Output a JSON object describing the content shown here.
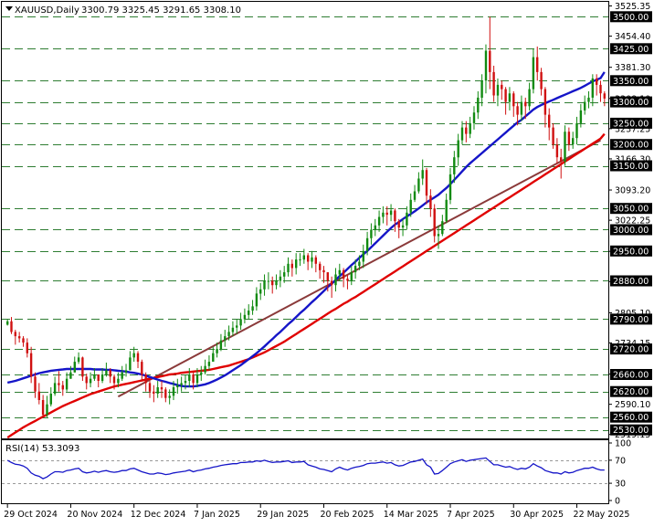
{
  "chart_data": {
    "type": "candlestick",
    "symbol_label": "XAUUSD,Daily",
    "ohlc_label": "3300.79 3325.45 3291.65 3308.10",
    "y_axis_ticks": [
      "3525.35",
      "3454.40",
      "3381.30",
      "3308.10",
      "3237.25",
      "3166.30",
      "3093.20",
      "3022.25",
      "2949.15",
      "2878.20",
      "2805.10",
      "2734.15",
      "2661.05",
      "2590.10",
      "2519.15"
    ],
    "ylim": [
      2510,
      3535
    ],
    "horizontal_levels": [
      3500,
      3425,
      3350,
      3300,
      3250,
      3200,
      3150,
      3050,
      3000,
      2950,
      2880,
      2790,
      2720,
      2660,
      2620,
      2560,
      2530
    ],
    "level_labels": [
      "3500.00",
      "3425.00",
      "3350.00",
      "3300.00",
      "3250.00",
      "3200.00",
      "3150.00",
      "3050.00",
      "3000.00",
      "2950.00",
      "2880.00",
      "2790.00",
      "2720.00",
      "2660.00",
      "2620.00",
      "2560.00",
      "2530.00"
    ],
    "x_labels": [
      "29 Oct 2024",
      "20 Nov 2024",
      "12 Dec 2024",
      "7 Jan 2025",
      "29 Jan 2025",
      "20 Feb 2025",
      "14 Mar 2025",
      "7 Apr 2025",
      "30 Apr 2025",
      "22 May 2025"
    ],
    "x_label_index": [
      0,
      16,
      32,
      48,
      64,
      80,
      96,
      112,
      128,
      144
    ],
    "closes": [
      2785,
      2760,
      2750,
      2745,
      2735,
      2710,
      2655,
      2620,
      2600,
      2565,
      2590,
      2615,
      2640,
      2635,
      2625,
      2650,
      2665,
      2690,
      2700,
      2655,
      2640,
      2650,
      2660,
      2645,
      2660,
      2670,
      2655,
      2640,
      2650,
      2665,
      2670,
      2700,
      2710,
      2690,
      2660,
      2640,
      2620,
      2615,
      2630,
      2625,
      2605,
      2610,
      2630,
      2635,
      2640,
      2645,
      2660,
      2640,
      2660,
      2665,
      2680,
      2690,
      2710,
      2720,
      2740,
      2750,
      2760,
      2770,
      2775,
      2790,
      2800,
      2810,
      2820,
      2850,
      2860,
      2880,
      2880,
      2870,
      2880,
      2890,
      2900,
      2920,
      2910,
      2930,
      2930,
      2940,
      2925,
      2935,
      2920,
      2905,
      2900,
      2880,
      2870,
      2895,
      2905,
      2885,
      2880,
      2900,
      2915,
      2925,
      2950,
      2980,
      3000,
      3010,
      3030,
      3040,
      3035,
      3045,
      3020,
      3005,
      3010,
      3040,
      3070,
      3090,
      3120,
      3140,
      3080,
      3050,
      2985,
      2990,
      3020,
      3070,
      3130,
      3170,
      3210,
      3240,
      3225,
      3250,
      3275,
      3310,
      3350,
      3420,
      3370,
      3315,
      3340,
      3330,
      3300,
      3320,
      3290,
      3270,
      3300,
      3290,
      3330,
      3405,
      3370,
      3330,
      3270,
      3240,
      3200,
      3170,
      3160,
      3230,
      3200,
      3215,
      3250,
      3280,
      3300,
      3310,
      3355,
      3340,
      3320,
      3308
    ],
    "highs": [
      2790,
      2795,
      2765,
      2760,
      2750,
      2745,
      2725,
      2665,
      2640,
      2612,
      2610,
      2630,
      2655,
      2668,
      2645,
      2665,
      2680,
      2702,
      2712,
      2702,
      2662,
      2665,
      2675,
      2660,
      2675,
      2688,
      2675,
      2660,
      2665,
      2680,
      2685,
      2715,
      2725,
      2715,
      2695,
      2665,
      2645,
      2635,
      2645,
      2645,
      2630,
      2625,
      2645,
      2650,
      2655,
      2660,
      2675,
      2665,
      2675,
      2680,
      2695,
      2705,
      2725,
      2735,
      2755,
      2765,
      2775,
      2785,
      2790,
      2805,
      2815,
      2825,
      2835,
      2865,
      2875,
      2895,
      2900,
      2890,
      2895,
      2905,
      2915,
      2935,
      2930,
      2945,
      2945,
      2955,
      2945,
      2950,
      2940,
      2925,
      2915,
      2900,
      2890,
      2910,
      2920,
      2910,
      2895,
      2915,
      2930,
      2940,
      2965,
      2995,
      3015,
      3025,
      3045,
      3055,
      3055,
      3060,
      3050,
      3025,
      3025,
      3055,
      3085,
      3105,
      3135,
      3165,
      3145,
      3095,
      3060,
      3010,
      3035,
      3085,
      3145,
      3185,
      3225,
      3255,
      3255,
      3265,
      3290,
      3325,
      3365,
      3435,
      3500,
      3385,
      3355,
      3350,
      3335,
      3335,
      3325,
      3300,
      3315,
      3310,
      3345,
      3425,
      3430,
      3380,
      3335,
      3285,
      3250,
      3215,
      3190,
      3245,
      3240,
      3230,
      3265,
      3295,
      3315,
      3325,
      3365,
      3365,
      3350,
      3325
    ],
    "lows": [
      2775,
      2755,
      2730,
      2735,
      2725,
      2700,
      2640,
      2605,
      2590,
      2560,
      2560,
      2585,
      2610,
      2620,
      2610,
      2620,
      2650,
      2670,
      2685,
      2645,
      2625,
      2630,
      2645,
      2630,
      2640,
      2655,
      2640,
      2625,
      2630,
      2645,
      2655,
      2670,
      2690,
      2675,
      2645,
      2620,
      2605,
      2595,
      2605,
      2605,
      2595,
      2590,
      2600,
      2615,
      2620,
      2625,
      2630,
      2625,
      2630,
      2645,
      2660,
      2670,
      2690,
      2700,
      2715,
      2725,
      2740,
      2750,
      2755,
      2765,
      2780,
      2790,
      2800,
      2810,
      2835,
      2845,
      2860,
      2850,
      2860,
      2865,
      2875,
      2890,
      2890,
      2895,
      2915,
      2920,
      2905,
      2910,
      2900,
      2885,
      2875,
      2855,
      2840,
      2855,
      2880,
      2865,
      2860,
      2870,
      2885,
      2905,
      2910,
      2940,
      2965,
      2985,
      2995,
      3015,
      3010,
      3020,
      2995,
      2980,
      2985,
      3000,
      3030,
      3065,
      3085,
      3105,
      3060,
      3030,
      2970,
      2955,
      2985,
      3015,
      3060,
      3110,
      3150,
      3200,
      3205,
      3215,
      3235,
      3260,
      3290,
      3320,
      3330,
      3300,
      3290,
      3305,
      3270,
      3280,
      3265,
      3245,
      3255,
      3260,
      3280,
      3320,
      3350,
      3315,
      3240,
      3210,
      3190,
      3155,
      3120,
      3150,
      3185,
      3190,
      3200,
      3240,
      3270,
      3285,
      3290,
      3315,
      3300,
      3290
    ],
    "ma_blue": [
      2641,
      2643,
      2645,
      2648,
      2651,
      2654,
      2657,
      2660,
      2663,
      2665,
      2667,
      2669,
      2670,
      2671,
      2672,
      2673,
      2673,
      2673,
      2673,
      2673,
      2673,
      2673,
      2672,
      2672,
      2672,
      2671,
      2671,
      2670,
      2669,
      2668,
      2667,
      2665,
      2664,
      2662,
      2660,
      2657,
      2654,
      2651,
      2648,
      2645,
      2643,
      2640,
      2638,
      2635,
      2633,
      2632,
      2632,
      2632,
      2633,
      2635,
      2637,
      2640,
      2644,
      2648,
      2653,
      2658,
      2664,
      2670,
      2676,
      2682,
      2689,
      2696,
      2703,
      2710,
      2718,
      2726,
      2735,
      2743,
      2752,
      2760,
      2769,
      2778,
      2786,
      2795,
      2804,
      2812,
      2821,
      2830,
      2838,
      2847,
      2856,
      2865,
      2873,
      2882,
      2891,
      2899,
      2908,
      2917,
      2925,
      2934,
      2942,
      2950,
      2959,
      2968,
      2977,
      2986,
      2995,
      3004,
      3012,
      3018,
      3025,
      3031,
      3037,
      3043,
      3050,
      3057,
      3064,
      3070,
      3076,
      3082,
      3090,
      3098,
      3107,
      3117,
      3127,
      3137,
      3147,
      3156,
      3164,
      3172,
      3180,
      3188,
      3196,
      3204,
      3212,
      3220,
      3228,
      3236,
      3244,
      3252,
      3258,
      3266,
      3274,
      3282,
      3288,
      3293,
      3297,
      3301,
      3305,
      3309,
      3313,
      3317,
      3321,
      3325,
      3329,
      3333,
      3338,
      3343,
      3348,
      3352,
      3356,
      3370
    ],
    "ma_red": [
      2512,
      2518,
      2524,
      2530,
      2536,
      2541,
      2546,
      2551,
      2556,
      2561,
      2566,
      2571,
      2576,
      2581,
      2586,
      2590,
      2594,
      2598,
      2602,
      2606,
      2610,
      2614,
      2617,
      2620,
      2623,
      2626,
      2629,
      2632,
      2634,
      2636,
      2638,
      2640,
      2642,
      2644,
      2646,
      2648,
      2650,
      2652,
      2654,
      2656,
      2658,
      2660,
      2661,
      2662,
      2664,
      2665,
      2666,
      2667,
      2668,
      2669,
      2670,
      2671,
      2673,
      2675,
      2677,
      2679,
      2681,
      2684,
      2687,
      2690,
      2693,
      2696,
      2700,
      2704,
      2708,
      2712,
      2717,
      2722,
      2727,
      2732,
      2737,
      2743,
      2749,
      2755,
      2761,
      2767,
      2773,
      2779,
      2785,
      2791,
      2797,
      2803,
      2809,
      2814,
      2820,
      2826,
      2831,
      2837,
      2842,
      2848,
      2854,
      2860,
      2866,
      2872,
      2878,
      2884,
      2890,
      2896,
      2902,
      2908,
      2914,
      2920,
      2926,
      2932,
      2938,
      2944,
      2950,
      2956,
      2962,
      2968,
      2974,
      2980,
      2986,
      2992,
      2998,
      3004,
      3010,
      3016,
      3022,
      3028,
      3034,
      3040,
      3046,
      3052,
      3058,
      3064,
      3070,
      3076,
      3082,
      3088,
      3094,
      3100,
      3106,
      3112,
      3118,
      3124,
      3130,
      3136,
      3142,
      3148,
      3154,
      3160,
      3166,
      3172,
      3178,
      3184,
      3190,
      3196,
      3202,
      3208,
      3214,
      3225
    ],
    "trendline": {
      "start": [
        28,
        2608
      ],
      "end": [
        150,
        3210
      ]
    },
    "rsi": {
      "label": "RSI(14) 53.3093",
      "ticks": [
        "100",
        "70",
        "30",
        "0"
      ],
      "levels": [
        70,
        30
      ],
      "values": [
        70,
        66,
        63,
        62,
        60,
        56,
        48,
        44,
        42,
        38,
        41,
        46,
        50,
        50,
        49,
        52,
        53,
        55,
        56,
        50,
        48,
        49,
        51,
        49,
        51,
        52,
        50,
        49,
        50,
        52,
        52,
        55,
        56,
        53,
        50,
        48,
        46,
        46,
        48,
        47,
        45,
        46,
        48,
        49,
        50,
        51,
        53,
        50,
        52,
        53,
        55,
        56,
        58,
        59,
        61,
        62,
        63,
        64,
        64,
        66,
        66,
        67,
        67,
        69,
        68,
        70,
        68,
        66,
        67,
        67,
        68,
        69,
        66,
        67,
        67,
        68,
        62,
        60,
        58,
        55,
        54,
        52,
        50,
        55,
        58,
        55,
        53,
        56,
        58,
        59,
        61,
        64,
        65,
        65,
        66,
        67,
        65,
        66,
        62,
        60,
        61,
        64,
        67,
        68,
        70,
        72,
        62,
        58,
        46,
        47,
        52,
        58,
        64,
        67,
        69,
        71,
        68,
        70,
        71,
        72,
        73,
        74,
        68,
        62,
        62,
        60,
        58,
        59,
        56,
        54,
        56,
        55,
        58,
        64,
        60,
        57,
        52,
        50,
        48,
        48,
        46,
        50,
        48,
        49,
        52,
        54,
        56,
        56,
        58,
        55,
        53,
        53
      ]
    }
  }
}
